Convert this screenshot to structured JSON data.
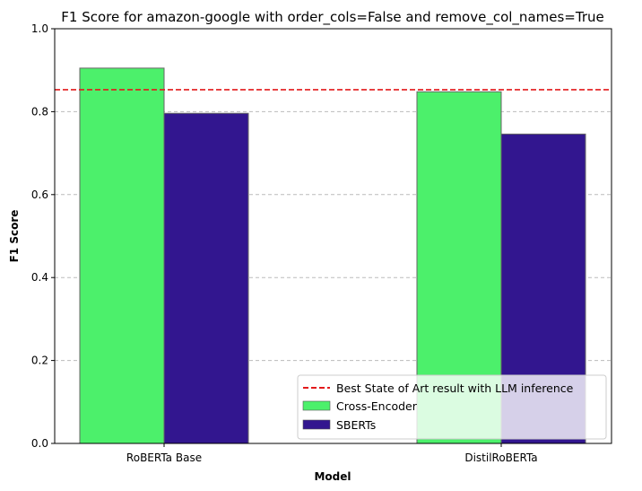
{
  "chart_data": {
    "type": "bar",
    "title": "F1 Score for amazon-google with order_cols=False and remove_col_names=True",
    "xlabel": "Model",
    "ylabel": "F1 Score",
    "categories": [
      "RoBERTa Base",
      "DistilRoBERTa"
    ],
    "series": [
      {
        "name": "Cross-Encoder",
        "values": [
          0.905,
          0.848
        ],
        "color": "#4cf06b"
      },
      {
        "name": "SBERTs",
        "values": [
          0.796,
          0.746
        ],
        "color": "#32168f"
      }
    ],
    "reference_line": {
      "name": "Best State of Art result with LLM inference",
      "value": 0.853,
      "color": "#e31a1c",
      "style": "dashed"
    },
    "ylim": [
      0,
      1.0
    ],
    "yticks": [
      "0.0",
      "0.2",
      "0.4",
      "0.6",
      "0.8",
      "1.0"
    ],
    "grid": "y-dashed",
    "legend_position": "lower-right"
  }
}
